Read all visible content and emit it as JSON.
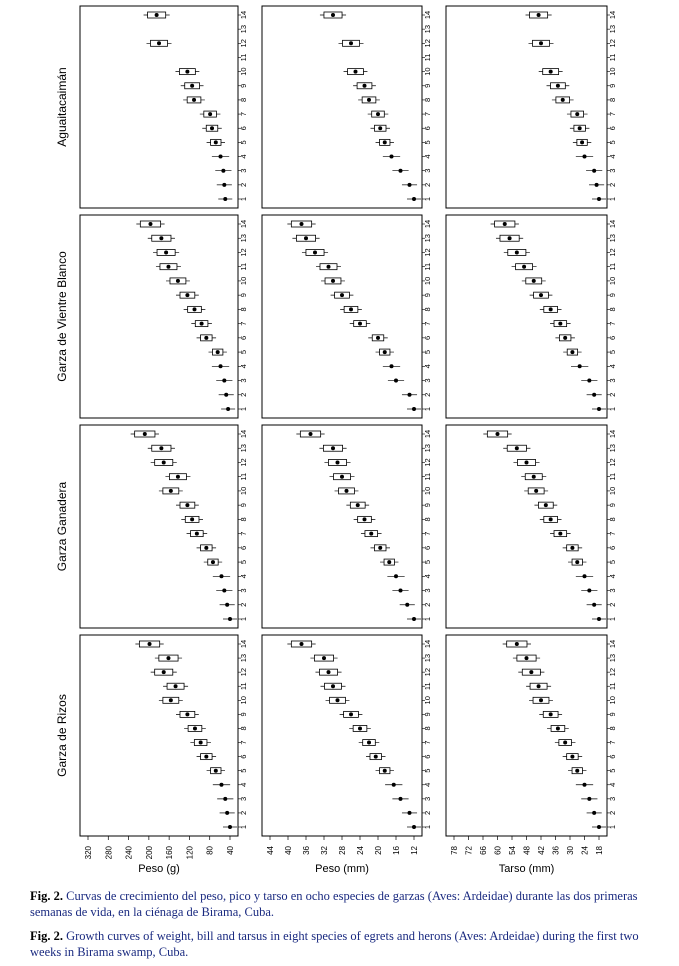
{
  "figure": {
    "species": [
      "Aguaitacaimán",
      "Garza de Vientre Blanco",
      "Garza Ganadera",
      "Garza de Rizos"
    ],
    "xlabels": [
      "Peso (g)",
      "Peso (mm)",
      "Tarso (mm)"
    ],
    "axis_ticks": [
      [
        "320",
        "280",
        "240",
        "200",
        "160",
        "120",
        "80",
        "40"
      ],
      [
        "44",
        "40",
        "36",
        "32",
        "28",
        "24",
        "20",
        "16",
        "12"
      ],
      [
        "78",
        "72",
        "66",
        "60",
        "54",
        "48",
        "42",
        "36",
        "30",
        "24",
        "18"
      ]
    ],
    "day_ticks": [
      "1",
      "2",
      "3",
      "4",
      "5",
      "6",
      "7",
      "8",
      "9",
      "10",
      "11",
      "12",
      "13",
      "14"
    ]
  },
  "captions": {
    "es_label": "Fig. 2.",
    "es_text": "Curvas de crecimiento del peso, pico y tarso en ocho especies de garzas (Aves: Ardeidae) durante las dos primeras semanas de vida, en la ciénaga de Birama, Cuba.",
    "en_label": "Fig. 2.",
    "en_text": "Growth curves of weight, bill and tarsus in eight species of egrets and herons (Aves: Ardeidae) during the first two weeks in Birama swamp, Cuba."
  },
  "chart_data": [
    {
      "type": "scatter",
      "panel": "Aguaitacaimán / Peso (g)",
      "x": [
        1,
        2,
        3,
        4,
        5,
        6,
        7,
        8,
        9,
        10,
        12,
        14
      ],
      "y": [
        30,
        32,
        34,
        40,
        50,
        58,
        62,
        96,
        100,
        110,
        170,
        175
      ],
      "xlabel": "",
      "ylabel": "Peso (g)",
      "ylim": [
        20,
        320
      ]
    },
    {
      "type": "scatter",
      "panel": "Aguaitacaimán / Peso (mm)",
      "x": [
        1,
        2,
        3,
        4,
        5,
        6,
        7,
        8,
        9,
        10,
        12,
        14
      ],
      "y": [
        12,
        13,
        15,
        17,
        18.5,
        19.5,
        20,
        22,
        23,
        25,
        26,
        30
      ],
      "xlabel": "",
      "ylabel": "Peso (mm)",
      "ylim": [
        12,
        44
      ]
    },
    {
      "type": "scatter",
      "panel": "Aguaitacaimán / Tarso (mm)",
      "x": [
        1,
        2,
        3,
        4,
        5,
        6,
        7,
        8,
        9,
        10,
        12,
        14
      ],
      "y": [
        18,
        19,
        20,
        24,
        25,
        26,
        27,
        33,
        35,
        38,
        42,
        43
      ],
      "xlabel": "",
      "ylabel": "Tarso (mm)",
      "ylim": [
        18,
        78
      ]
    },
    {
      "type": "scatter",
      "panel": "Garza de Vientre Blanco / Peso (g)",
      "x": [
        1,
        2,
        3,
        4,
        5,
        6,
        7,
        8,
        9,
        10,
        11,
        12,
        13,
        14
      ],
      "y": [
        24,
        28,
        32,
        40,
        46,
        70,
        80,
        95,
        110,
        130,
        150,
        155,
        165,
        188
      ],
      "xlabel": "",
      "ylabel": "Peso (g)",
      "ylim": [
        20,
        320
      ]
    },
    {
      "type": "scatter",
      "panel": "Garza de Vientre Blanco / Peso (mm)",
      "x": [
        1,
        2,
        3,
        4,
        5,
        6,
        7,
        8,
        9,
        10,
        11,
        12,
        13,
        14
      ],
      "y": [
        12,
        13,
        16,
        17,
        18.5,
        20,
        24,
        26,
        28,
        30,
        31,
        34,
        36,
        37
      ],
      "xlabel": "",
      "ylabel": "Peso (mm)",
      "ylim": [
        12,
        44
      ]
    },
    {
      "type": "scatter",
      "panel": "Garza de Vientre Blanco / Tarso (mm)",
      "x": [
        1,
        2,
        3,
        4,
        5,
        6,
        7,
        8,
        9,
        10,
        11,
        12,
        13,
        14
      ],
      "y": [
        18,
        20,
        22,
        26,
        29,
        32,
        34,
        38,
        42,
        45,
        49,
        52,
        55,
        57
      ],
      "xlabel": "",
      "ylabel": "Tarso (mm)",
      "ylim": [
        18,
        78
      ]
    },
    {
      "type": "scatter",
      "panel": "Garza Ganadera / Peso (g)",
      "x": [
        1,
        2,
        3,
        4,
        5,
        6,
        7,
        8,
        9,
        10,
        11,
        12,
        13,
        14
      ],
      "y": [
        20,
        26,
        32,
        38,
        56,
        70,
        90,
        100,
        110,
        145,
        130,
        160,
        165,
        200
      ],
      "xlabel": "",
      "ylabel": "Peso (g)",
      "ylim": [
        20,
        320
      ]
    },
    {
      "type": "scatter",
      "panel": "Garza Ganadera / Peso (mm)",
      "x": [
        1,
        2,
        3,
        4,
        5,
        6,
        7,
        8,
        9,
        10,
        11,
        12,
        13,
        14
      ],
      "y": [
        12,
        13.5,
        15,
        16,
        17.5,
        19.5,
        21.5,
        23,
        24.5,
        27,
        28,
        29,
        30,
        35
      ],
      "xlabel": "",
      "ylabel": "Peso (mm)",
      "ylim": [
        12,
        44
      ]
    },
    {
      "type": "scatter",
      "panel": "Garza Ganadera / Tarso (mm)",
      "x": [
        1,
        2,
        3,
        4,
        5,
        6,
        7,
        8,
        9,
        10,
        11,
        12,
        13,
        14
      ],
      "y": [
        18,
        20,
        22,
        24,
        27,
        29,
        34,
        38,
        40,
        44,
        45,
        48,
        52,
        60
      ],
      "xlabel": "",
      "ylabel": "Tarso (mm)",
      "ylim": [
        18,
        78
      ]
    },
    {
      "type": "scatter",
      "panel": "Garza de Rizos / Peso (g)",
      "x": [
        1,
        2,
        3,
        4,
        5,
        6,
        7,
        8,
        9,
        10,
        11,
        12,
        13,
        14
      ],
      "y": [
        20,
        26,
        30,
        38,
        50,
        70,
        82,
        94,
        110,
        145,
        135,
        160,
        150,
        190
      ],
      "xlabel": "",
      "ylabel": "Peso (g)",
      "ylim": [
        20,
        320
      ]
    },
    {
      "type": "scatter",
      "panel": "Garza de Rizos / Peso (mm)",
      "x": [
        1,
        2,
        3,
        4,
        5,
        6,
        7,
        8,
        9,
        10,
        11,
        12,
        13,
        14
      ],
      "y": [
        12,
        13,
        15,
        16.5,
        18.5,
        20.5,
        22,
        24,
        26,
        29,
        30,
        31,
        32,
        37
      ],
      "xlabel": "",
      "ylabel": "Peso (mm)",
      "ylim": [
        12,
        44
      ]
    },
    {
      "type": "scatter",
      "panel": "Garza de Rizos / Tarso (mm)",
      "x": [
        1,
        2,
        3,
        4,
        5,
        6,
        7,
        8,
        9,
        10,
        11,
        12,
        13,
        14
      ],
      "y": [
        18,
        20,
        22,
        24,
        27,
        29,
        32,
        35,
        38,
        42,
        43,
        46,
        48,
        52
      ],
      "xlabel": "",
      "ylabel": "Tarso (mm)",
      "ylim": [
        18,
        78
      ]
    }
  ]
}
